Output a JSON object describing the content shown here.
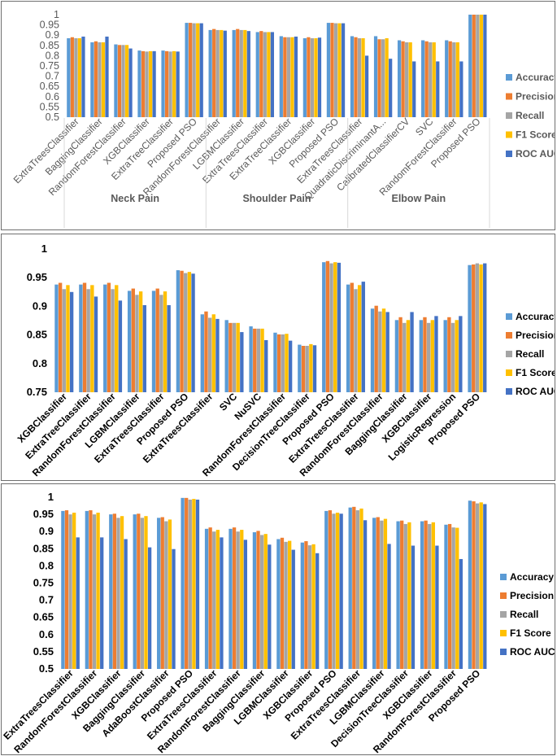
{
  "chart_data": [
    {
      "type": "bar",
      "ylim": [
        0.5,
        1
      ],
      "yticks": [
        "0.5",
        "0.55",
        "0.6",
        "0.65",
        "0.7",
        "0.75",
        "0.8",
        "0.85",
        "0.9",
        "0.95",
        "1"
      ],
      "legend": [
        "Accuracy",
        "Precision",
        "Recall",
        "F1 Score",
        "ROC AUC"
      ],
      "legend_position": "right",
      "colors": [
        "#5b9bd5",
        "#ed7d31",
        "#a5a5a5",
        "#ffc000",
        "#4472c4"
      ],
      "groups": [
        "Neck Pain",
        "Shoulder Pain",
        "Elbow Pain"
      ],
      "categories": [
        "ExtraTreesClassifier",
        "BaggingClassifier",
        "RandomForestClassifier",
        "XGBClassifier",
        "ExtraTreeClassifier",
        "Proposed PSO",
        "RandomForestClassifier",
        "LGBMClassifier",
        "ExtraTreesClassifier",
        "ExtraTreeClassifier",
        "XGBClassifier",
        "Proposed PSO",
        "ExtraTreesClassifier",
        "QuadraticDiscriminantA...",
        "CalibratedClassifierCV",
        "SVC",
        "RandomForestClassifier",
        "Proposed PSO"
      ],
      "series": [
        {
          "name": "Accuracy",
          "values": [
            0.885,
            0.865,
            0.855,
            0.825,
            0.825,
            0.96,
            0.925,
            0.925,
            0.915,
            0.895,
            0.885,
            0.96,
            0.895,
            0.895,
            0.875,
            0.875,
            0.875,
            1.0
          ]
        },
        {
          "name": "Precision",
          "values": [
            0.89,
            0.87,
            0.852,
            0.822,
            0.822,
            0.96,
            0.93,
            0.93,
            0.92,
            0.89,
            0.89,
            0.96,
            0.89,
            0.88,
            0.87,
            0.87,
            0.87,
            1.0
          ]
        },
        {
          "name": "Recall",
          "values": [
            0.885,
            0.865,
            0.852,
            0.82,
            0.82,
            0.958,
            0.925,
            0.925,
            0.915,
            0.89,
            0.885,
            0.958,
            0.885,
            0.88,
            0.865,
            0.865,
            0.865,
            1.0
          ]
        },
        {
          "name": "F1 Score",
          "values": [
            0.885,
            0.865,
            0.852,
            0.822,
            0.822,
            0.958,
            0.925,
            0.925,
            0.915,
            0.89,
            0.885,
            0.958,
            0.885,
            0.885,
            0.865,
            0.865,
            0.865,
            1.0
          ]
        },
        {
          "name": "ROC AUC",
          "values": [
            0.893,
            0.893,
            0.835,
            0.822,
            0.82,
            0.958,
            0.922,
            0.92,
            0.915,
            0.893,
            0.888,
            0.958,
            0.8,
            0.785,
            0.772,
            0.772,
            0.772,
            1.0
          ]
        }
      ]
    },
    {
      "type": "bar",
      "ylim": [
        0.75,
        1
      ],
      "yticks": [
        "0.75",
        "0.8",
        "0.85",
        "0.9",
        "0.95",
        "1"
      ],
      "legend": [
        "Accuracy",
        "Precision",
        "Recall",
        "F1 Score",
        "ROC AUC"
      ],
      "legend_position": "right",
      "colors": [
        "#5b9bd5",
        "#ed7d31",
        "#a5a5a5",
        "#ffc000",
        "#4472c4"
      ],
      "categories": [
        "XGBClassifier",
        "ExtraTreeClassifier",
        "RandomForestClassifier",
        "LGBMClassifier",
        "ExtraTreesClassifier",
        "Proposed PSO",
        "ExtraTreesClassifier",
        "SVC",
        "NuSVC",
        "RandomForestClassifier",
        "DecisionTreeClassifier",
        "Proposed PSO",
        "ExtraTreesClassifier",
        "RandomForestClassifier",
        "BaggingClassifier",
        "XGBClassifier",
        "LogisticRegression",
        "Proposed PSO"
      ],
      "series": [
        {
          "name": "Accuracy",
          "values": [
            0.938,
            0.938,
            0.938,
            0.927,
            0.927,
            0.963,
            0.886,
            0.876,
            0.865,
            0.854,
            0.833,
            0.977,
            0.938,
            0.896,
            0.876,
            0.876,
            0.876,
            0.972
          ]
        },
        {
          "name": "Precision",
          "values": [
            0.941,
            0.941,
            0.941,
            0.931,
            0.931,
            0.962,
            0.891,
            0.871,
            0.861,
            0.851,
            0.831,
            0.979,
            0.941,
            0.901,
            0.881,
            0.881,
            0.881,
            0.973
          ]
        },
        {
          "name": "Recall",
          "values": [
            0.93,
            0.93,
            0.93,
            0.92,
            0.92,
            0.958,
            0.88,
            0.871,
            0.861,
            0.851,
            0.831,
            0.975,
            0.93,
            0.891,
            0.871,
            0.871,
            0.871,
            0.975
          ]
        },
        {
          "name": "F1 Score",
          "values": [
            0.937,
            0.937,
            0.937,
            0.926,
            0.926,
            0.96,
            0.886,
            0.871,
            0.861,
            0.852,
            0.834,
            0.977,
            0.937,
            0.896,
            0.876,
            0.876,
            0.876,
            0.973
          ]
        },
        {
          "name": "ROC AUC",
          "values": [
            0.925,
            0.917,
            0.91,
            0.902,
            0.902,
            0.957,
            0.878,
            0.855,
            0.841,
            0.84,
            0.832,
            0.976,
            0.943,
            0.89,
            0.89,
            0.883,
            0.883,
            0.975
          ]
        }
      ]
    },
    {
      "type": "bar",
      "ylim": [
        0.5,
        1
      ],
      "yticks": [
        "0.5",
        "0.55",
        "0.6",
        "0.65",
        "0.7",
        "0.75",
        "0.8",
        "0.85",
        "0.9",
        "0.95",
        "1"
      ],
      "legend": [
        "Accuracy",
        "Precision",
        "Recall",
        "F1 Score",
        "ROC AUC"
      ],
      "legend_position": "right",
      "colors": [
        "#5b9bd5",
        "#ed7d31",
        "#a5a5a5",
        "#ffc000",
        "#4472c4"
      ],
      "categories": [
        "ExtraTreesClassifier",
        "RandomForestClassifier",
        "XGBClassifier",
        "BaggingClassifier",
        "AdaBoostClassifier",
        "Proposed PSO",
        "ExtraTreesClassifier",
        "RandomForestClassifier",
        "BaggingClassifier",
        "LGBMClassifier",
        "XGBClassifier",
        "Proposed PSO",
        "ExtraTreesClassifier",
        "LGBMClassifier",
        "DecisionTreeClassifier",
        "XGBClassifier",
        "RandomForestClassifier",
        "Proposed PSO"
      ],
      "series": [
        {
          "name": "Accuracy",
          "values": [
            0.96,
            0.96,
            0.95,
            0.95,
            0.94,
            0.998,
            0.908,
            0.908,
            0.898,
            0.878,
            0.868,
            0.96,
            0.97,
            0.94,
            0.93,
            0.93,
            0.92,
            0.99
          ]
        },
        {
          "name": "Precision",
          "values": [
            0.962,
            0.962,
            0.952,
            0.952,
            0.942,
            0.998,
            0.912,
            0.912,
            0.902,
            0.882,
            0.872,
            0.962,
            0.972,
            0.942,
            0.932,
            0.932,
            0.922,
            0.988
          ]
        },
        {
          "name": "Recall",
          "values": [
            0.95,
            0.95,
            0.94,
            0.94,
            0.93,
            0.993,
            0.9,
            0.9,
            0.89,
            0.87,
            0.86,
            0.952,
            0.962,
            0.932,
            0.922,
            0.922,
            0.912,
            0.982
          ]
        },
        {
          "name": "F1 Score",
          "values": [
            0.955,
            0.955,
            0.945,
            0.945,
            0.935,
            0.995,
            0.905,
            0.905,
            0.893,
            0.873,
            0.863,
            0.955,
            0.967,
            0.937,
            0.927,
            0.927,
            0.911,
            0.985
          ]
        },
        {
          "name": "ROC AUC",
          "values": [
            0.883,
            0.883,
            0.878,
            0.854,
            0.849,
            0.993,
            0.883,
            0.876,
            0.862,
            0.847,
            0.837,
            0.952,
            0.933,
            0.864,
            0.859,
            0.859,
            0.82,
            0.98
          ]
        }
      ]
    }
  ]
}
